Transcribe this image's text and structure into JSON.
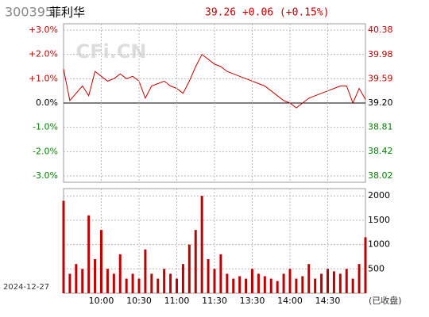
{
  "chart_data": [
    {
      "type": "line",
      "title": "300395",
      "subtitle": "菲利华",
      "quote": "39.26 +0.06 (+0.15%)",
      "watermark": "CFi.CN",
      "x": [
        "09:30",
        "09:35",
        "09:40",
        "09:45",
        "09:50",
        "09:55",
        "10:00",
        "10:05",
        "10:10",
        "10:15",
        "10:20",
        "10:25",
        "10:30",
        "10:35",
        "10:40",
        "10:45",
        "10:50",
        "10:55",
        "11:00",
        "11:05",
        "11:10",
        "11:15",
        "11:20",
        "11:25",
        "11:30",
        "13:05",
        "13:10",
        "13:15",
        "13:20",
        "13:25",
        "13:30",
        "13:35",
        "13:40",
        "13:45",
        "13:50",
        "13:55",
        "14:00",
        "14:05",
        "14:10",
        "14:15",
        "14:20",
        "14:25",
        "14:30",
        "14:35",
        "14:40",
        "14:45",
        "14:50",
        "14:55",
        "15:00"
      ],
      "series": [
        {
          "color": "#c00000",
          "values": [
            1.4,
            0.1,
            0.4,
            0.7,
            0.3,
            1.3,
            1.1,
            0.9,
            1.0,
            1.2,
            1.0,
            1.1,
            0.9,
            0.2,
            0.7,
            0.8,
            0.9,
            0.7,
            0.6,
            0.4,
            0.9,
            1.5,
            2.0,
            1.8,
            1.6,
            1.5,
            1.3,
            1.2,
            1.1,
            1.0,
            0.9,
            0.8,
            0.7,
            0.5,
            0.3,
            0.1,
            0.0,
            -0.2,
            0.0,
            0.2,
            0.3,
            0.4,
            0.5,
            0.6,
            0.7,
            0.7,
            0.0,
            0.6,
            0.15
          ]
        }
      ],
      "ylim": [
        -3,
        3
      ],
      "yticks": [
        {
          "value": 3,
          "label": "+3.0%"
        },
        {
          "value": 2,
          "label": "+2.0%"
        },
        {
          "value": 1,
          "label": "+1.0%"
        },
        {
          "value": 0,
          "label": "0.0%"
        },
        {
          "value": -1,
          "label": "-1.0%"
        },
        {
          "value": -2,
          "label": "-2.0%"
        },
        {
          "value": -3,
          "label": "-3.0%"
        }
      ],
      "y2lim": [
        38.02,
        40.38
      ],
      "y2ticks": [
        40.38,
        39.98,
        39.59,
        {
          "value": 39.2,
          "label": "39.20"
        },
        38.81,
        38.42,
        38.02
      ],
      "grid": true
    },
    {
      "type": "bar",
      "date": "2024-12-27",
      "status": "(已收盘)",
      "x": [
        "09:30",
        "09:35",
        "09:40",
        "09:45",
        "09:50",
        "09:55",
        "10:00",
        "10:05",
        "10:10",
        "10:15",
        "10:20",
        "10:25",
        "10:30",
        "10:35",
        "10:40",
        "10:45",
        "10:50",
        "10:55",
        "11:00",
        "11:05",
        "11:10",
        "11:15",
        "11:20",
        "11:25",
        "11:30",
        "13:05",
        "13:10",
        "13:15",
        "13:20",
        "13:25",
        "13:30",
        "13:35",
        "13:40",
        "13:45",
        "13:50",
        "13:55",
        "14:00",
        "14:05",
        "14:10",
        "14:15",
        "14:20",
        "14:25",
        "14:30",
        "14:35",
        "14:40",
        "14:45",
        "14:50",
        "14:55",
        "15:00"
      ],
      "values": [
        1900,
        400,
        600,
        500,
        1600,
        700,
        1300,
        500,
        400,
        800,
        300,
        400,
        300,
        900,
        400,
        300,
        500,
        400,
        300,
        600,
        1000,
        1300,
        2000,
        700,
        500,
        800,
        400,
        300,
        350,
        300,
        500,
        400,
        350,
        300,
        250,
        400,
        500,
        300,
        350,
        600,
        300,
        400,
        500,
        450,
        400,
        500,
        300,
        600,
        1150
      ],
      "color": "#c00000",
      "ylim": [
        0,
        2150
      ],
      "yticks": [
        500,
        1000,
        1500,
        2000
      ],
      "xticks": [
        "10:00",
        "10:30",
        "11:00",
        "11:30",
        "13:30",
        "14:00",
        "14:30"
      ],
      "grid": true
    }
  ]
}
